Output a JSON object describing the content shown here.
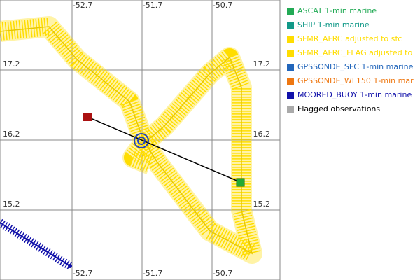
{
  "map": {
    "xlim": [
      -53.73,
      -49.73
    ],
    "ylim": [
      14.2,
      18.2
    ],
    "xticks": [
      -52.7,
      -51.7,
      -50.7
    ],
    "yticks": [
      17.2,
      16.2,
      15.2
    ],
    "legend": [
      {
        "label": "ASCAT 1-min marine",
        "color": "#22aa55",
        "text_color": "#22aa55"
      },
      {
        "label": "SHIP 1-min marine",
        "color": "#119988",
        "text_color": "#119988"
      },
      {
        "label": "SFMR_AFRC adjusted to sfc",
        "color": "#ffdd00",
        "text_color": "#ffdd00"
      },
      {
        "label": "SFMR_AFRC_FLAG adjusted to",
        "color": "#ffdd00",
        "text_color": "#ffdd00"
      },
      {
        "label": "GPSSONDE_SFC 1-min marine",
        "color": "#2266bb",
        "text_color": "#2266bb"
      },
      {
        "label": "GPSSONDE_WL150 1-min mar",
        "color": "#ee7711",
        "text_color": "#ee7711"
      },
      {
        "label": "MOORED_BUOY 1-min marine",
        "color": "#1111aa",
        "text_color": "#1111aa"
      },
      {
        "label": "Flagged observations",
        "color": "#aaaaaa",
        "text_color": "#000000"
      }
    ]
  }
}
